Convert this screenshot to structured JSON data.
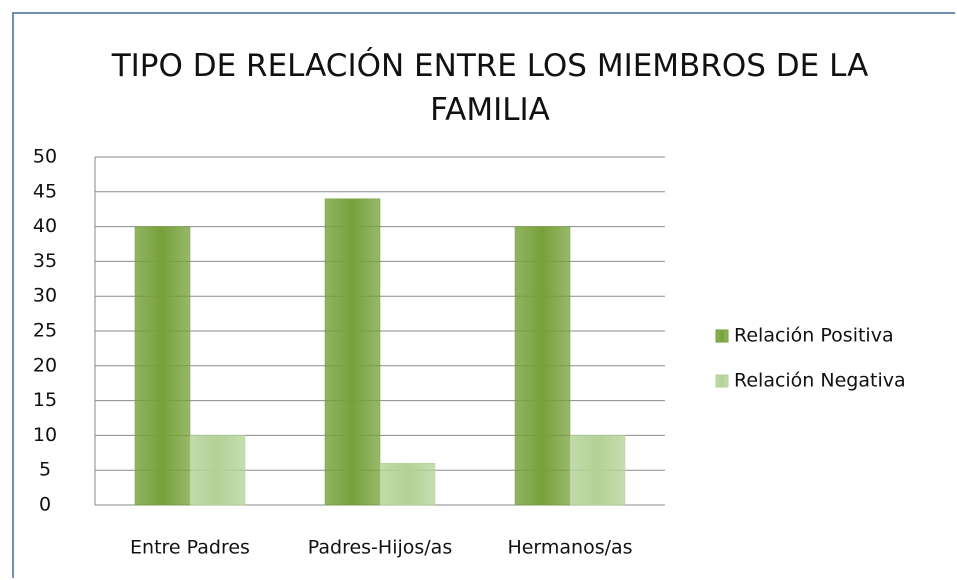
{
  "chart_data": {
    "type": "bar",
    "title": "TIPO DE RELACIÓN ENTRE LOS MIEMBROS DE LA FAMILIA",
    "categories": [
      "Entre Padres",
      "Padres-Hijos/as",
      "Hermanos/as"
    ],
    "series": [
      {
        "name": "Relación Positiva",
        "color": "#76a13a",
        "values": [
          40,
          44,
          40
        ]
      },
      {
        "name": "Relación Negativa",
        "color": "#b3d296",
        "values": [
          10,
          6,
          10
        ]
      }
    ],
    "ylim": [
      0,
      50
    ],
    "yticks": [
      0,
      5,
      10,
      15,
      20,
      25,
      30,
      35,
      40,
      45,
      50
    ],
    "grid": true,
    "legend": "right"
  }
}
